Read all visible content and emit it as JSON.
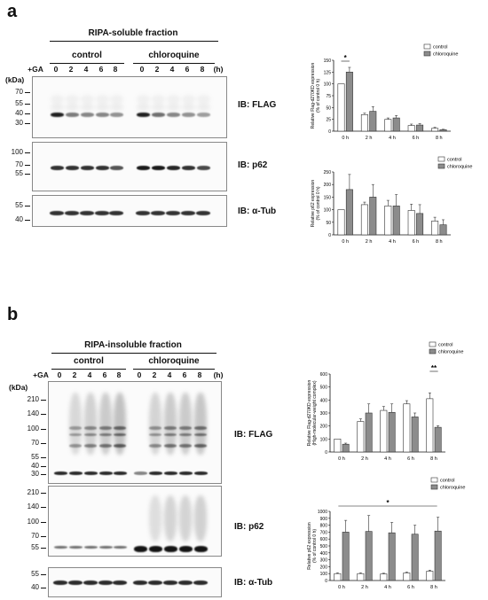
{
  "panel_a": {
    "letter": "a",
    "fraction": "RIPA-soluble fraction",
    "group1": "control",
    "group2": "chloroquine",
    "ga": "+GA",
    "lanes": [
      "0",
      "2",
      "4",
      "6",
      "8",
      "0",
      "2",
      "4",
      "6",
      "8"
    ],
    "hours": "(h)",
    "kda": "(kDa)",
    "flag_markers": [
      "70",
      "55",
      "40",
      "30"
    ],
    "p62_markers": [
      "100",
      "70",
      "55"
    ],
    "tub_markers": [
      "55",
      "40"
    ],
    "ib_flag": "IB: FLAG",
    "ib_p62": "IB: p62",
    "ib_tub": "IB: α-Tub"
  },
  "panel_b": {
    "letter": "b",
    "fraction": "RIPA-insoluble fraction",
    "group1": "control",
    "group2": "chloroquine",
    "ga": "+GA",
    "lanes": [
      "0",
      "2",
      "4",
      "6",
      "8",
      "0",
      "2",
      "4",
      "6",
      "8"
    ],
    "hours": "(h)",
    "kda": "(kDa)",
    "flag_markers": [
      "210",
      "140",
      "100",
      "70",
      "55",
      "40",
      "30"
    ],
    "p62_markers": [
      "210",
      "140",
      "100",
      "70",
      "55"
    ],
    "tub_markers": [
      "55",
      "40"
    ],
    "ib_flag": "IB: FLAG",
    "ib_p62": "IB: p62",
    "ib_tub": "IB: α-Tub"
  },
  "chart_data": [
    {
      "type": "bar",
      "categories": [
        "0 h",
        "2 h",
        "4 h",
        "6 h",
        "8 h"
      ],
      "series": [
        {
          "name": "control",
          "values": [
            100,
            35,
            25,
            12,
            6
          ],
          "errors": [
            0,
            3,
            3,
            3,
            2
          ],
          "color": "#ffffff"
        },
        {
          "name": "chloroquine",
          "values": [
            125,
            42,
            28,
            13,
            3
          ],
          "errors": [
            10,
            10,
            5,
            3,
            1
          ],
          "color": "#8c8c8c"
        }
      ],
      "ylabel": "Relative Flag-d270KD expression (% of control 0 h)",
      "ylim": [
        0,
        150
      ],
      "yticks": [
        0,
        25,
        50,
        75,
        100,
        125,
        150
      ],
      "legend": "top-right",
      "significance": [
        {
          "label": "*",
          "between": [
            "0 h",
            "0 h"
          ]
        }
      ]
    },
    {
      "type": "bar",
      "categories": [
        "0 h",
        "2 h",
        "4 h",
        "6 h",
        "8 h"
      ],
      "series": [
        {
          "name": "control",
          "values": [
            100,
            120,
            115,
            97,
            55
          ],
          "errors": [
            0,
            10,
            22,
            25,
            15
          ],
          "color": "#ffffff"
        },
        {
          "name": "chloroquine",
          "values": [
            180,
            150,
            115,
            85,
            40
          ],
          "errors": [
            60,
            50,
            45,
            35,
            20
          ],
          "color": "#8c8c8c"
        }
      ],
      "ylabel": "Relative p62 expression (% of control 0 h)",
      "ylim": [
        0,
        250
      ],
      "yticks": [
        0,
        50,
        100,
        150,
        200,
        250
      ],
      "legend": "top-right"
    },
    {
      "type": "bar",
      "categories": [
        "0 h",
        "2 h",
        "4 h",
        "6 h",
        "8 h"
      ],
      "series": [
        {
          "name": "control",
          "values": [
            100,
            235,
            320,
            370,
            410
          ],
          "errors": [
            0,
            20,
            30,
            25,
            45
          ],
          "color": "#ffffff"
        },
        {
          "name": "chloroquine",
          "values": [
            60,
            300,
            305,
            270,
            190
          ],
          "errors": [
            8,
            70,
            65,
            30,
            12
          ],
          "color": "#8c8c8c"
        }
      ],
      "ylabel": "Relative Flag-d270KD expression (High-molecular-weight complex)",
      "ylim": [
        0,
        600
      ],
      "yticks": [
        0,
        100,
        200,
        300,
        400,
        500,
        600
      ],
      "legend": "top-right",
      "significance": [
        {
          "label": "**",
          "between": [
            "8 h",
            "8 h"
          ]
        }
      ]
    },
    {
      "type": "bar",
      "categories": [
        "0 h",
        "2 h",
        "4 h",
        "6 h",
        "8 h"
      ],
      "series": [
        {
          "name": "control",
          "values": [
            100,
            100,
            95,
            110,
            135
          ],
          "errors": [
            10,
            10,
            10,
            12,
            15
          ],
          "color": "#ffffff"
        },
        {
          "name": "chloroquine",
          "values": [
            700,
            710,
            690,
            670,
            715
          ],
          "errors": [
            170,
            230,
            150,
            130,
            200
          ],
          "color": "#8c8c8c"
        }
      ],
      "ylabel": "Relative p62 expression (% of control 0 h)",
      "ylim": [
        0,
        1000
      ],
      "yticks": [
        0,
        100,
        200,
        300,
        400,
        500,
        600,
        700,
        800,
        900,
        1000
      ],
      "legend": "top-right",
      "significance": [
        {
          "label": "*",
          "between": [
            "0 h",
            "8 h"
          ]
        }
      ]
    }
  ]
}
